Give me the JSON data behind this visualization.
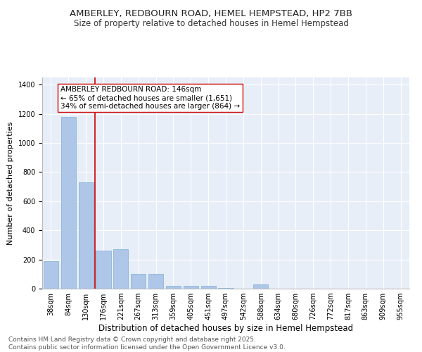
{
  "title": "AMBERLEY, REDBOURN ROAD, HEMEL HEMPSTEAD, HP2 7BB",
  "subtitle": "Size of property relative to detached houses in Hemel Hempstead",
  "xlabel": "Distribution of detached houses by size in Hemel Hempstead",
  "ylabel": "Number of detached properties",
  "categories": [
    "38sqm",
    "84sqm",
    "130sqm",
    "176sqm",
    "221sqm",
    "267sqm",
    "313sqm",
    "359sqm",
    "405sqm",
    "451sqm",
    "497sqm",
    "542sqm",
    "588sqm",
    "634sqm",
    "680sqm",
    "726sqm",
    "772sqm",
    "817sqm",
    "863sqm",
    "909sqm",
    "955sqm"
  ],
  "values": [
    190,
    1180,
    730,
    260,
    270,
    100,
    100,
    20,
    20,
    20,
    5,
    0,
    30,
    0,
    0,
    0,
    0,
    0,
    0,
    0,
    0
  ],
  "bar_color": "#aec6e8",
  "bar_edge_color": "#7aafd4",
  "vline_color": "#cc0000",
  "annotation_text": "AMBERLEY REDBOURN ROAD: 146sqm\n← 65% of detached houses are smaller (1,651)\n34% of semi-detached houses are larger (864) →",
  "annotation_box_color": "white",
  "annotation_box_edge": "#cc0000",
  "ylim": [
    0,
    1450
  ],
  "yticks": [
    0,
    200,
    400,
    600,
    800,
    1000,
    1200,
    1400
  ],
  "background_color": "#e8eef8",
  "grid_color": "#ffffff",
  "footer_line1": "Contains HM Land Registry data © Crown copyright and database right 2025.",
  "footer_line2": "Contains public sector information licensed under the Open Government Licence v3.0.",
  "title_fontsize": 9.5,
  "subtitle_fontsize": 8.5,
  "xlabel_fontsize": 8.5,
  "ylabel_fontsize": 8,
  "tick_fontsize": 7,
  "annotation_fontsize": 7.5,
  "footer_fontsize": 6.5,
  "vline_bar_index": 2.5
}
